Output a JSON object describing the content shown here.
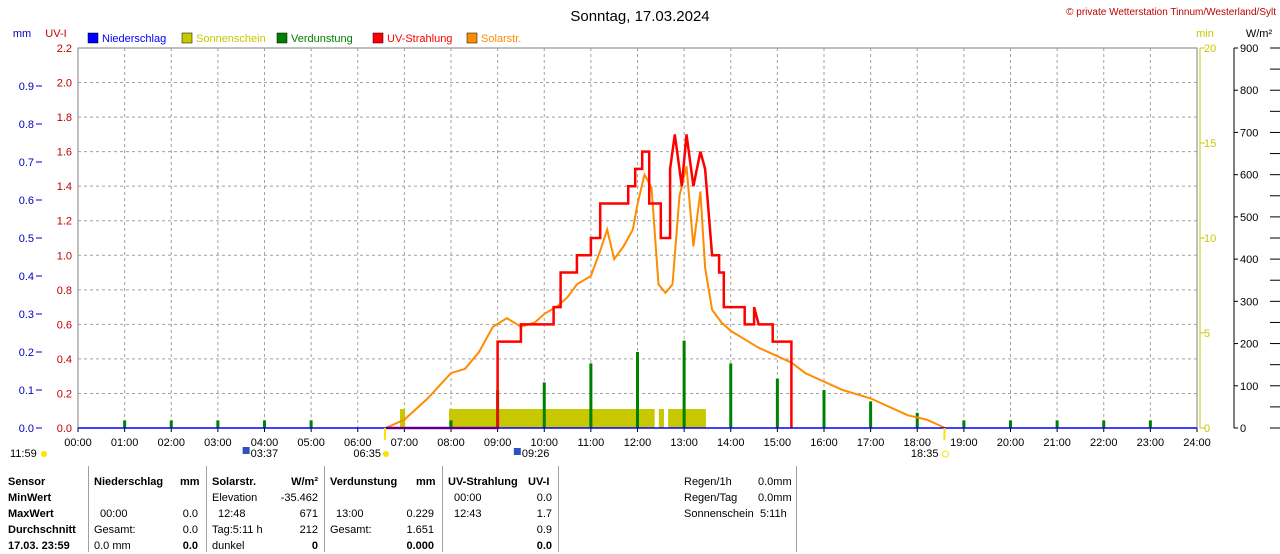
{
  "header": {
    "title": "Sonntag, 17.03.2024",
    "credit": "© private Wetterstation Tinnum/Westerland/Sylt"
  },
  "axes": {
    "left_mm_label": "mm",
    "left_uvi_label": "UV-I",
    "right_min_label": "min",
    "right_wm2_label": "W/m²"
  },
  "legend": [
    {
      "label": "Niederschlag",
      "color": "#0000ff"
    },
    {
      "label": "Sonnenschein",
      "color": "#c8c800"
    },
    {
      "label": "Verdunstung",
      "color": "#008000"
    },
    {
      "label": "UV-Strahlung",
      "color": "#ff0000"
    },
    {
      "label": "Solarstr.",
      "color": "#ff8c00"
    }
  ],
  "markers": {
    "moon_set": "11:59",
    "moon_rise": "03:37",
    "sunrise": "06:35",
    "moon_transit": "09:26",
    "sunset": "18:35"
  },
  "chart_data": {
    "type": "line",
    "title": "Sonntag, 17.03.2024",
    "x_unit": "hour",
    "xlim": [
      0,
      24
    ],
    "x_ticks": [
      "00:00",
      "01:00",
      "02:00",
      "03:00",
      "04:00",
      "05:00",
      "06:00",
      "07:00",
      "08:00",
      "09:00",
      "10:00",
      "11:00",
      "12:00",
      "13:00",
      "14:00",
      "15:00",
      "16:00",
      "17:00",
      "18:00",
      "19:00",
      "20:00",
      "21:00",
      "22:00",
      "23:00",
      "24:00"
    ],
    "axes": {
      "mm": {
        "label": "mm",
        "lim": [
          0,
          1.0
        ],
        "ticks": [
          "0.0",
          "0.1",
          "0.2",
          "0.3",
          "0.4",
          "0.5",
          "0.6",
          "0.7",
          "0.8",
          "0.9"
        ],
        "color": "#0000c0"
      },
      "uvi": {
        "label": "UV-I",
        "lim": [
          0,
          2.2
        ],
        "ticks": [
          "0.0",
          "0.2",
          "0.4",
          "0.6",
          "0.8",
          "1.0",
          "1.2",
          "1.4",
          "1.6",
          "1.8",
          "2.0",
          "2.2"
        ],
        "color": "#c00000"
      },
      "minutes": {
        "label": "min",
        "lim": [
          0,
          20
        ],
        "ticks": [
          "0",
          "5",
          "10",
          "15",
          "20"
        ],
        "color": "#c8c800"
      },
      "wm2": {
        "label": "W/m²",
        "lim": [
          0,
          900
        ],
        "ticks": [
          "0",
          "100",
          "200",
          "300",
          "400",
          "500",
          "600",
          "700",
          "800",
          "900"
        ],
        "color": "#000000"
      }
    },
    "grid": true,
    "series": [
      {
        "name": "UV-Strahlung",
        "axis": "uvi",
        "color": "#ff0000",
        "style": "step",
        "points": [
          [
            6.6,
            0
          ],
          [
            9.0,
            0
          ],
          [
            9.0,
            0.5
          ],
          [
            9.5,
            0.5
          ],
          [
            9.5,
            0.6
          ],
          [
            10.2,
            0.6
          ],
          [
            10.2,
            0.7
          ],
          [
            10.35,
            0.7
          ],
          [
            10.35,
            0.9
          ],
          [
            10.7,
            0.9
          ],
          [
            10.7,
            1.0
          ],
          [
            11.0,
            1.0
          ],
          [
            11.0,
            1.1
          ],
          [
            11.2,
            1.1
          ],
          [
            11.2,
            1.3
          ],
          [
            11.6,
            1.3
          ],
          [
            11.6,
            1.3
          ],
          [
            11.8,
            1.3
          ],
          [
            11.8,
            1.4
          ],
          [
            11.95,
            1.4
          ],
          [
            11.95,
            1.5
          ],
          [
            12.1,
            1.5
          ],
          [
            12.1,
            1.6
          ],
          [
            12.25,
            1.6
          ],
          [
            12.25,
            1.3
          ],
          [
            12.5,
            1.3
          ],
          [
            12.5,
            1.1
          ],
          [
            12.7,
            1.1
          ],
          [
            12.7,
            1.5
          ],
          [
            12.8,
            1.7
          ],
          [
            12.95,
            1.4
          ],
          [
            13.05,
            1.7
          ],
          [
            13.2,
            1.4
          ],
          [
            13.35,
            1.6
          ],
          [
            13.45,
            1.5
          ],
          [
            13.6,
            1.0
          ],
          [
            13.75,
            1.0
          ],
          [
            13.75,
            0.9
          ],
          [
            13.85,
            0.9
          ],
          [
            13.85,
            0.7
          ],
          [
            14.3,
            0.7
          ],
          [
            14.3,
            0.6
          ],
          [
            14.5,
            0.6
          ],
          [
            14.5,
            0.7
          ],
          [
            14.6,
            0.6
          ],
          [
            14.9,
            0.6
          ],
          [
            14.9,
            0.5
          ],
          [
            15.3,
            0.5
          ],
          [
            15.3,
            0
          ]
        ]
      },
      {
        "name": "Solarstr.",
        "axis": "wm2",
        "color": "#ff8c00",
        "style": "line",
        "points": [
          [
            6.6,
            0
          ],
          [
            7.0,
            20
          ],
          [
            7.5,
            70
          ],
          [
            8.0,
            130
          ],
          [
            8.3,
            140
          ],
          [
            8.6,
            180
          ],
          [
            8.9,
            240
          ],
          [
            9.2,
            260
          ],
          [
            9.5,
            240
          ],
          [
            9.8,
            250
          ],
          [
            10.0,
            270
          ],
          [
            10.3,
            290
          ],
          [
            10.5,
            310
          ],
          [
            10.7,
            340
          ],
          [
            11.0,
            360
          ],
          [
            11.2,
            420
          ],
          [
            11.35,
            470
          ],
          [
            11.5,
            400
          ],
          [
            11.7,
            430
          ],
          [
            11.9,
            470
          ],
          [
            12.0,
            530
          ],
          [
            12.15,
            600
          ],
          [
            12.3,
            570
          ],
          [
            12.45,
            340
          ],
          [
            12.6,
            320
          ],
          [
            12.75,
            340
          ],
          [
            12.9,
            550
          ],
          [
            13.05,
            620
          ],
          [
            13.2,
            430
          ],
          [
            13.35,
            560
          ],
          [
            13.45,
            380
          ],
          [
            13.6,
            280
          ],
          [
            13.8,
            250
          ],
          [
            14.0,
            230
          ],
          [
            14.3,
            210
          ],
          [
            14.6,
            190
          ],
          [
            15.0,
            170
          ],
          [
            15.3,
            155
          ],
          [
            15.6,
            130
          ],
          [
            16.0,
            110
          ],
          [
            16.4,
            90
          ],
          [
            16.7,
            80
          ],
          [
            17.0,
            70
          ],
          [
            17.4,
            50
          ],
          [
            17.8,
            30
          ],
          [
            18.2,
            20
          ],
          [
            18.5,
            5
          ],
          [
            18.6,
            0
          ]
        ]
      },
      {
        "name": "Sonnenschein",
        "axis": "minutes",
        "bars": [
          [
            6.95,
            1
          ],
          [
            8.0,
            1
          ],
          [
            8.1,
            1
          ],
          [
            8.2,
            1
          ],
          [
            8.3,
            1
          ],
          [
            8.4,
            1
          ],
          [
            8.5,
            1
          ],
          [
            8.6,
            1
          ],
          [
            8.7,
            1
          ],
          [
            8.8,
            1
          ],
          [
            8.9,
            1
          ],
          [
            9.0,
            1
          ],
          [
            9.1,
            1
          ],
          [
            9.2,
            1
          ],
          [
            9.3,
            1
          ],
          [
            9.4,
            1
          ],
          [
            9.5,
            1
          ],
          [
            9.6,
            1
          ],
          [
            9.7,
            1
          ],
          [
            9.8,
            1
          ],
          [
            9.9,
            1
          ],
          [
            10.0,
            1
          ],
          [
            10.1,
            1
          ],
          [
            10.2,
            1
          ],
          [
            10.3,
            1
          ],
          [
            10.4,
            1
          ],
          [
            10.5,
            1
          ],
          [
            10.6,
            1
          ],
          [
            10.7,
            1
          ],
          [
            10.8,
            1
          ],
          [
            10.9,
            1
          ],
          [
            11.0,
            1
          ],
          [
            11.1,
            1
          ],
          [
            11.2,
            1
          ],
          [
            11.3,
            1
          ],
          [
            11.4,
            1
          ],
          [
            11.5,
            1
          ],
          [
            11.6,
            1
          ],
          [
            11.7,
            1
          ],
          [
            11.8,
            1
          ],
          [
            11.9,
            1
          ],
          [
            12.0,
            1
          ],
          [
            12.1,
            1
          ],
          [
            12.2,
            1
          ],
          [
            12.3,
            1
          ],
          [
            12.5,
            1
          ],
          [
            12.7,
            1
          ],
          [
            12.8,
            1
          ],
          [
            12.9,
            1
          ],
          [
            13.0,
            1
          ],
          [
            13.1,
            1
          ],
          [
            13.2,
            1
          ],
          [
            13.3,
            1
          ],
          [
            13.4,
            1
          ]
        ],
        "color": "#c8c800"
      },
      {
        "name": "Verdunstung",
        "axis": "mm",
        "color": "#008000",
        "bars": [
          [
            1,
            0.02
          ],
          [
            2,
            0.02
          ],
          [
            3,
            0.02
          ],
          [
            4,
            0.02
          ],
          [
            5,
            0.02
          ],
          [
            8,
            0.02
          ],
          [
            9,
            0.1
          ],
          [
            10,
            0.12
          ],
          [
            11,
            0.17
          ],
          [
            12,
            0.2
          ],
          [
            13,
            0.23
          ],
          [
            14,
            0.17
          ],
          [
            15,
            0.13
          ],
          [
            16,
            0.1
          ],
          [
            17,
            0.07
          ],
          [
            18,
            0.04
          ],
          [
            19,
            0.02
          ],
          [
            20,
            0.02
          ],
          [
            21,
            0.02
          ],
          [
            22,
            0.02
          ],
          [
            23,
            0.02
          ]
        ]
      },
      {
        "name": "Niederschlag",
        "axis": "mm",
        "color": "#0000ff",
        "bars": []
      }
    ]
  },
  "stats": {
    "sensor_header": "Sensor",
    "row_labels": [
      "MinWert",
      "MaxWert",
      "Durchschnitt",
      "17.03. 23:59"
    ],
    "niederschlag": {
      "title": "Niederschlag",
      "unit": "mm",
      "max_time": "00:00",
      "max": "0.0",
      "gesamt_label": "Gesamt:",
      "gesamt": "0.0",
      "last": "0.0 mm",
      "last_bold": "0.0"
    },
    "solar": {
      "title": "Solarstr.",
      "unit": "W/m²",
      "elev_label": "Elevation",
      "elev": "-35.462",
      "max_time": "12:48",
      "max": "671",
      "tag_label": "Tag:5:11 h",
      "avg": "212",
      "last_label": "dunkel",
      "last": "0"
    },
    "verdunstung": {
      "title": "Verdunstung",
      "unit": "mm",
      "max_time": "13:00",
      "max": "0.229",
      "gesamt_label": "Gesamt:",
      "gesamt": "1.651",
      "last": "0.000"
    },
    "uv": {
      "title": "UV-Strahlung",
      "unit": "UV-I",
      "min_time": "00:00",
      "min": "0.0",
      "max_time": "12:43",
      "max": "1.7",
      "avg": "0.9",
      "last": "0.0"
    },
    "summary": {
      "rain_h_label": "Regen/1h",
      "rain_h": "0.0mm",
      "rain_day_label": "Regen/Tag",
      "rain_day": "0.0mm",
      "sun_label": "Sonnenschein",
      "sun": "5:11h"
    }
  }
}
